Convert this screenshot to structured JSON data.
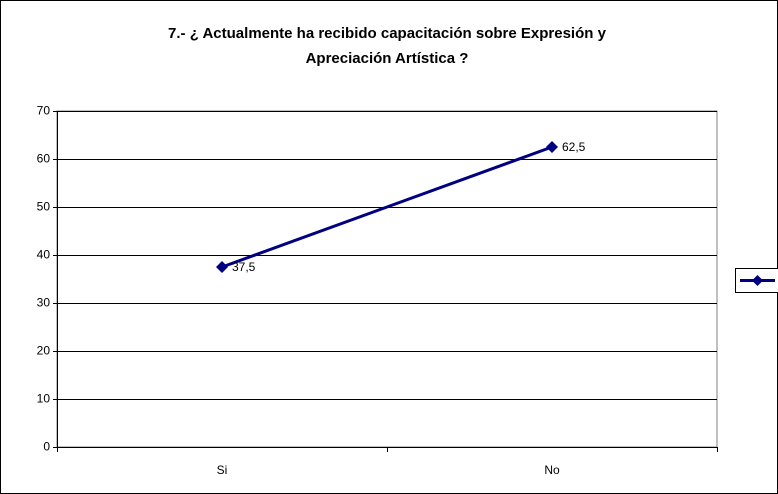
{
  "chart_data": {
    "type": "line",
    "title": [
      "7.- ¿ Actualmente ha recibido capacitación sobre Expresión y",
      "Apreciación Artística ?"
    ],
    "categories": [
      "Si",
      "No"
    ],
    "series": [
      {
        "color": "#000080",
        "values": [
          37.5,
          62.5
        ],
        "value_labels": [
          "37,5",
          "62,5"
        ]
      }
    ],
    "ylim": [
      0,
      70
    ],
    "yticks": [
      0,
      10,
      20,
      30,
      40,
      50,
      60,
      70
    ],
    "grid": true,
    "legend": "right"
  }
}
